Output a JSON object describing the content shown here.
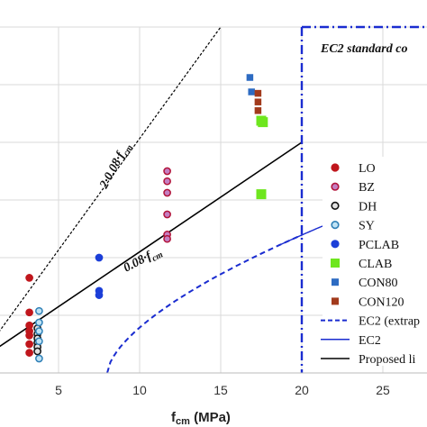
{
  "chart_data": {
    "type": "scatter",
    "xlabel": "f",
    "xlabel_sub": "cm",
    "xlabel_unit": " (MPa)",
    "xlim": [
      0,
      25
    ],
    "ylim": [
      0,
      2.4
    ],
    "xticks": [
      "5",
      "10",
      "15",
      "20",
      "25"
    ],
    "xtick_values": [
      5,
      10,
      15,
      20,
      25
    ],
    "grid": true,
    "legend_position": "right",
    "annotations": {
      "standard": "EC2 standard co",
      "line2": "2·0.08·f",
      "line1": "0.08·f",
      "sub": "cm"
    },
    "series": [
      {
        "name": "LO",
        "marker": "circle",
        "color": "#c0161c",
        "stroke": "#c0161c",
        "points": [
          [
            3.2,
            0.66
          ],
          [
            3.2,
            0.42
          ],
          [
            3.2,
            0.33
          ],
          [
            3.2,
            0.29
          ],
          [
            3.2,
            0.26
          ],
          [
            3.2,
            0.2
          ],
          [
            3.2,
            0.14
          ]
        ]
      },
      {
        "name": "BZ",
        "marker": "circle",
        "color": "#c47fc2",
        "stroke": "#b2143a",
        "points": [
          [
            11.7,
            1.4
          ],
          [
            11.7,
            1.33
          ],
          [
            11.7,
            1.25
          ],
          [
            11.7,
            1.1
          ],
          [
            11.7,
            0.96
          ],
          [
            11.7,
            0.93
          ]
        ]
      },
      {
        "name": "DH",
        "marker": "circle",
        "color": "#e2e2e2",
        "stroke": "#111111",
        "points": [
          [
            3.7,
            0.31
          ],
          [
            3.7,
            0.27
          ],
          [
            3.7,
            0.24
          ],
          [
            3.7,
            0.21
          ],
          [
            3.7,
            0.18
          ],
          [
            3.7,
            0.15
          ]
        ]
      },
      {
        "name": "SY",
        "marker": "circle",
        "color": "#bfe3f5",
        "stroke": "#2e7fb6",
        "points": [
          [
            3.8,
            0.43
          ],
          [
            3.8,
            0.35
          ],
          [
            3.8,
            0.29
          ],
          [
            3.8,
            0.22
          ],
          [
            3.8,
            0.1
          ]
        ]
      },
      {
        "name": "PCLAB",
        "marker": "circle",
        "color": "#1c3fd8",
        "stroke": "#1c3fd8",
        "points": [
          [
            7.5,
            0.8
          ],
          [
            7.5,
            0.57
          ],
          [
            7.5,
            0.54
          ]
        ]
      },
      {
        "name": "CLAB",
        "marker": "square",
        "color": "#6ee61e",
        "stroke": "#6ee61e",
        "points": [
          [
            17.5,
            1.75
          ],
          [
            17.6,
            1.74
          ],
          [
            17.5,
            1.24
          ]
        ]
      },
      {
        "name": "CON80",
        "marker": "square",
        "color": "#2d6bc2",
        "stroke": "#2d6bc2",
        "points": [
          [
            16.8,
            2.05
          ],
          [
            16.9,
            1.95
          ]
        ]
      },
      {
        "name": "CON120",
        "marker": "square",
        "color": "#a23a1c",
        "stroke": "#a23a1c",
        "points": [
          [
            17.3,
            1.94
          ],
          [
            17.3,
            1.88
          ],
          [
            17.3,
            1.82
          ]
        ]
      },
      {
        "name": "EC2 (extrap",
        "marker": "line",
        "line_style": "dashed",
        "color": "#1a2cd0"
      },
      {
        "name": "EC2",
        "marker": "line",
        "line_style": "solid",
        "color": "#1a2cd0"
      },
      {
        "name": "Proposed li",
        "marker": "line",
        "line_style": "solid",
        "color": "#000000"
      }
    ],
    "lines": {
      "proposed": {
        "x": [
          0,
          20
        ],
        "y": [
          0.08,
          1.6
        ]
      },
      "twice": {
        "x": [
          0,
          15
        ],
        "y": [
          0.08,
          2.4
        ]
      },
      "ec2_limit_x": 20
    }
  }
}
